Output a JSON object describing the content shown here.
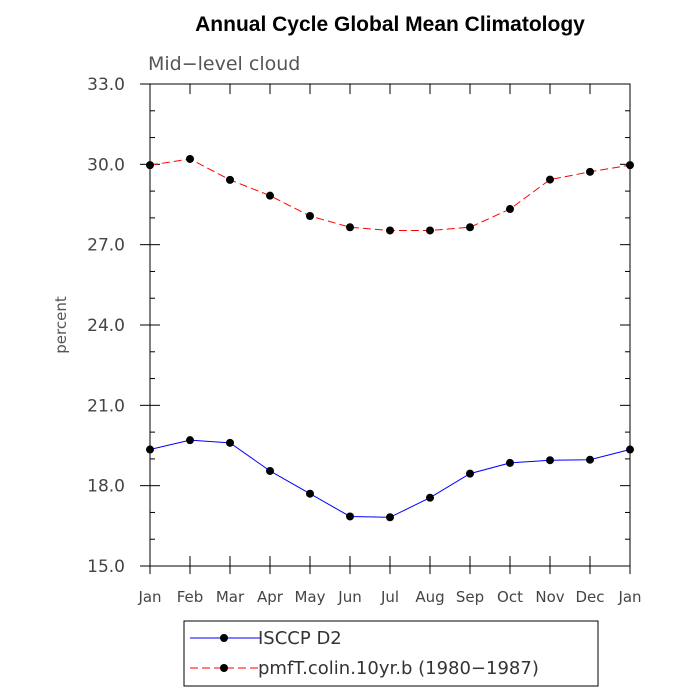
{
  "chart_data": {
    "type": "line",
    "title": "Annual Cycle Global Mean Climatology",
    "subtitle": "Mid−level cloud",
    "xlabel": "",
    "ylabel": "percent",
    "ylim": [
      15.0,
      33.0
    ],
    "yticks": [
      "15.0",
      "18.0",
      "21.0",
      "24.0",
      "27.0",
      "30.0",
      "33.0"
    ],
    "categories": [
      "Jan",
      "Feb",
      "Mar",
      "Apr",
      "May",
      "Jun",
      "Jul",
      "Aug",
      "Sep",
      "Oct",
      "Nov",
      "Dec",
      "Jan"
    ],
    "series": [
      {
        "name": "ISCCP D2",
        "color": "#0000ff",
        "dash": "solid",
        "values": [
          19.35,
          19.7,
          19.6,
          18.55,
          17.7,
          16.85,
          16.82,
          17.55,
          18.45,
          18.85,
          18.95,
          18.97,
          19.35
        ]
      },
      {
        "name": "pmfT.colin.10yr.b (1980−1987)",
        "color": "#ff0000",
        "dash": "dashed",
        "values": [
          29.97,
          30.2,
          29.42,
          28.83,
          28.07,
          27.65,
          27.53,
          27.53,
          27.65,
          28.33,
          29.43,
          29.72,
          29.97
        ]
      }
    ],
    "grid": false,
    "legend_position": "bottom"
  }
}
